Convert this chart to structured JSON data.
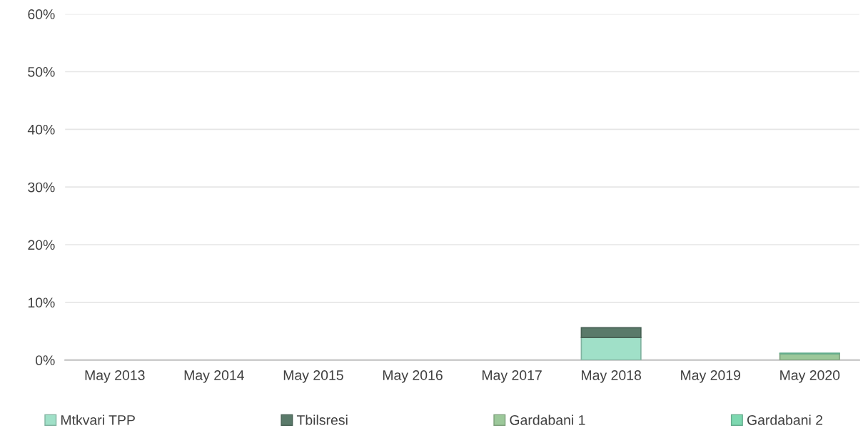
{
  "chart_data": {
    "type": "bar",
    "stacked": true,
    "categories": [
      "May 2013",
      "May 2014",
      "May 2015",
      "May 2016",
      "May 2017",
      "May 2018",
      "May 2019",
      "May 2020"
    ],
    "series": [
      {
        "name": "Mtkvari TPP",
        "color": "#a0e0c8",
        "values": [
          null,
          null,
          null,
          null,
          null,
          3.9,
          null,
          null
        ]
      },
      {
        "name": "Tbilsresi",
        "color": "#5a7a6a",
        "values": [
          null,
          null,
          null,
          null,
          null,
          1.7,
          null,
          null
        ]
      },
      {
        "name": "Gardabani 1",
        "color": "#9cc89a",
        "values": [
          null,
          null,
          null,
          null,
          null,
          null,
          null,
          1.1
        ]
      },
      {
        "name": "Gardabani 2",
        "color": "#7dd8b0",
        "values": [
          null,
          null,
          null,
          null,
          null,
          null,
          null,
          0.1
        ]
      }
    ],
    "ylim": [
      0,
      60
    ],
    "yticks": [
      {
        "value": 0,
        "label": "0%"
      },
      {
        "value": 10,
        "label": "10%"
      },
      {
        "value": 20,
        "label": "20%"
      },
      {
        "value": 30,
        "label": "30%"
      },
      {
        "value": 40,
        "label": "40%"
      },
      {
        "value": 50,
        "label": "50%"
      },
      {
        "value": 60,
        "label": "60%"
      }
    ],
    "grid": "y",
    "legend": "bottom"
  }
}
